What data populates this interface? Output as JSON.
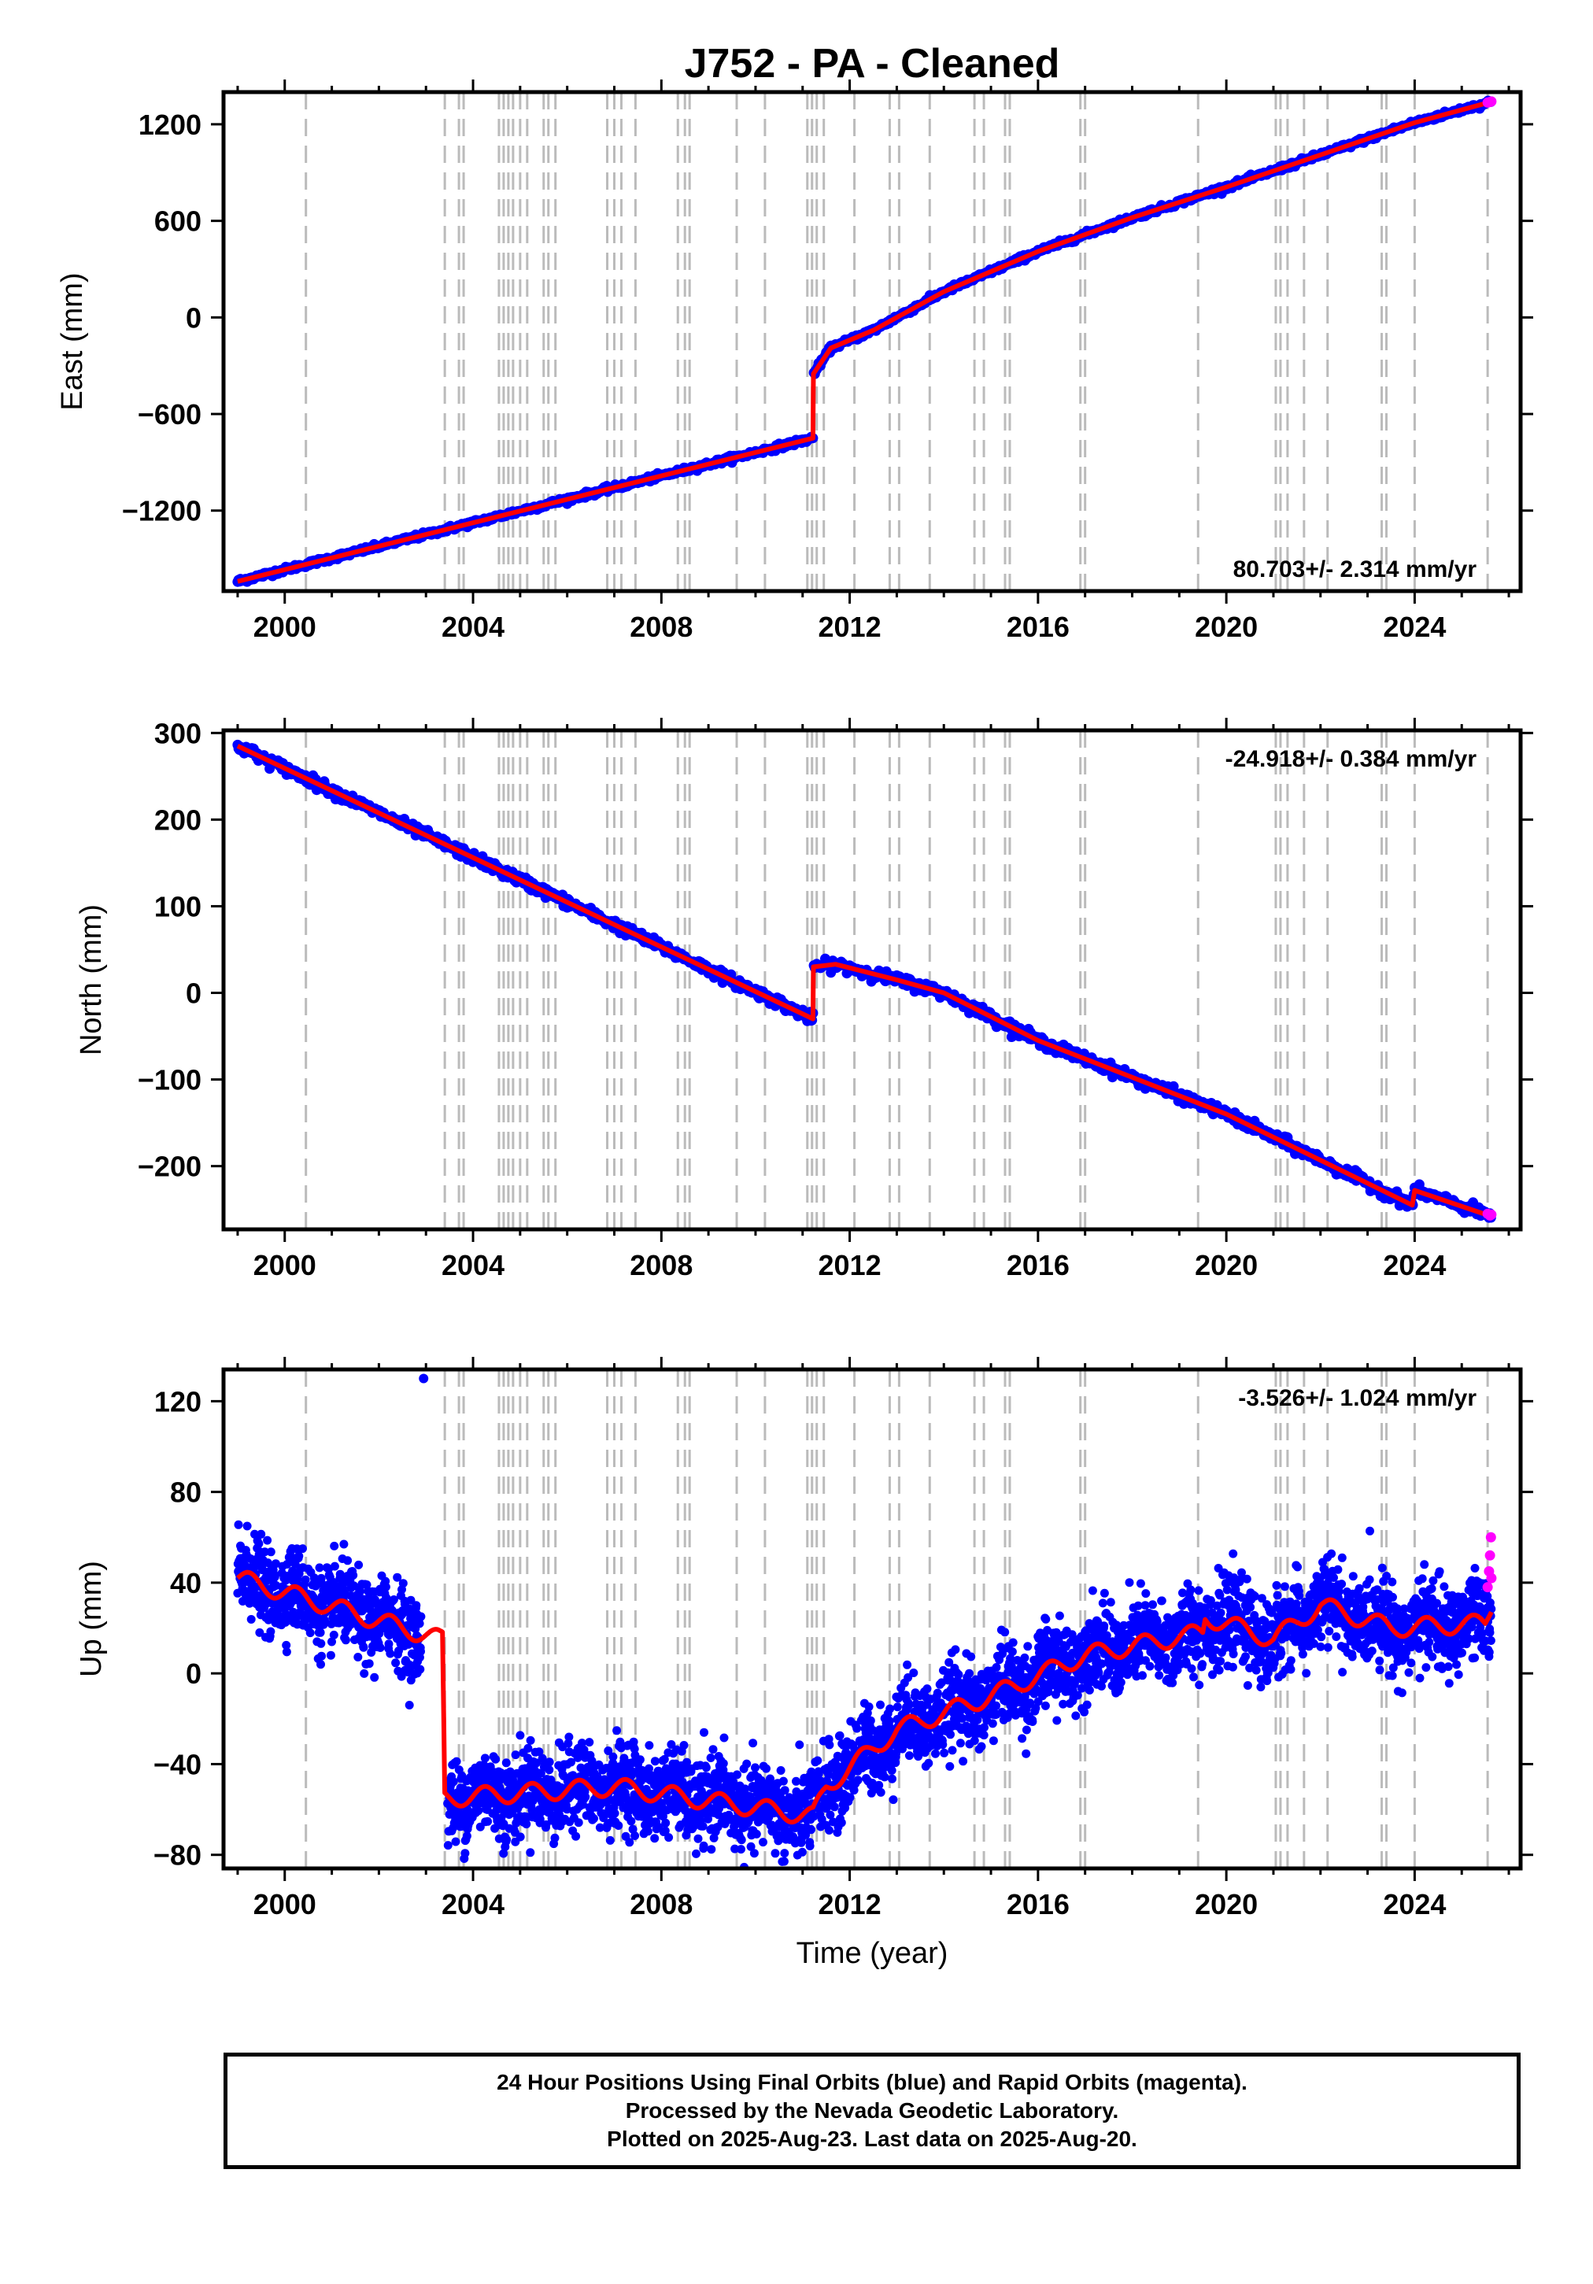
{
  "title": "J752  - PA - Cleaned",
  "footer": {
    "line1": "24 Hour Positions Using Final Orbits (blue) and Rapid Orbits (magenta).",
    "line2": "Processed by the Nevada Geodetic Laboratory.",
    "line3": "Plotted on 2025-Aug-23. Last data on 2025-Aug-20."
  },
  "colors": {
    "final": "#0000ff",
    "rapid": "#ff00ff",
    "model": "#ff0000",
    "events": "#bbbbbb"
  },
  "chart_data": [
    {
      "type": "scatter",
      "ylabel": "East (mm)",
      "xlabel": "",
      "xlim": [
        1998.7,
        2026.25
      ],
      "ylim": [
        -1700,
        1400
      ],
      "xticks": [
        2000,
        2004,
        2008,
        2012,
        2016,
        2020,
        2024
      ],
      "yticks": [
        1200,
        600,
        0,
        -600,
        -1200
      ],
      "rate_label": "80.703+/- 2.314 mm/yr",
      "rate_position": "bottom-right",
      "model": [
        [
          1999.0,
          -1640
        ],
        [
          2011.22,
          -750
        ],
        [
          2011.23,
          -350
        ],
        [
          2011.6,
          -190
        ],
        [
          2012.5,
          -80
        ],
        [
          2014,
          160
        ],
        [
          2016,
          410
        ],
        [
          2018,
          620
        ],
        [
          2020,
          810
        ],
        [
          2022,
          1010
        ],
        [
          2023.9,
          1200
        ],
        [
          2024.0,
          1210
        ],
        [
          2025.63,
          1340
        ]
      ],
      "noise": 8,
      "rapid": [
        [
          2025.55,
          1335
        ],
        [
          2025.6,
          1338
        ],
        [
          2025.63,
          1342
        ]
      ]
    },
    {
      "type": "scatter",
      "ylabel": "North (mm)",
      "xlabel": "",
      "xlim": [
        1998.7,
        2026.25
      ],
      "ylim": [
        -273,
        303
      ],
      "xticks": [
        2000,
        2004,
        2008,
        2012,
        2016,
        2020,
        2024
      ],
      "yticks": [
        300,
        200,
        100,
        0,
        -100,
        -200
      ],
      "rate_label": "-24.918+/- 0.384 mm/yr",
      "rate_position": "top-right",
      "model": [
        [
          1999.0,
          285
        ],
        [
          2011.22,
          -30
        ],
        [
          2011.23,
          30
        ],
        [
          2011.7,
          33
        ],
        [
          2013.0,
          15
        ],
        [
          2014.0,
          0
        ],
        [
          2016.0,
          -55
        ],
        [
          2020.0,
          -140
        ],
        [
          2023.95,
          -245
        ],
        [
          2024.0,
          -228
        ],
        [
          2025.63,
          -258
        ]
      ],
      "noise": 3,
      "rapid": [
        [
          2025.55,
          -255
        ],
        [
          2025.6,
          -257
        ],
        [
          2025.63,
          -256
        ]
      ]
    },
    {
      "type": "scatter",
      "ylabel": "Up (mm)",
      "xlabel": "Time (year)",
      "xlim": [
        1998.7,
        2026.25
      ],
      "ylim": [
        -86,
        134
      ],
      "xticks": [
        2000,
        2004,
        2008,
        2012,
        2016,
        2020,
        2024
      ],
      "yticks": [
        120,
        80,
        40,
        0,
        -40,
        -80
      ],
      "rate_label": "-3.526+/- 1.024 mm/yr",
      "rate_position": "top-right",
      "model": [
        [
          1999.0,
          42
        ],
        [
          2003.3,
          15
        ],
        [
          2003.35,
          15
        ],
        [
          2003.4,
          -55
        ],
        [
          2007.0,
          -50
        ],
        [
          2011.22,
          -63
        ],
        [
          2011.5,
          -50
        ],
        [
          2013.0,
          -25
        ],
        [
          2015.0,
          -10
        ],
        [
          2017.0,
          8
        ],
        [
          2019.5,
          18
        ],
        [
          2019.55,
          25
        ],
        [
          2021.0,
          15
        ],
        [
          2022.0,
          30
        ],
        [
          2023.5,
          20
        ],
        [
          2025.5,
          22
        ],
        [
          2025.63,
          30
        ]
      ],
      "noise": 9,
      "outliers": [
        [
          2002.95,
          130
        ]
      ],
      "rapid": [
        [
          2025.55,
          38
        ],
        [
          2025.58,
          45
        ],
        [
          2025.6,
          52
        ],
        [
          2025.62,
          60
        ],
        [
          2025.63,
          42
        ]
      ]
    }
  ],
  "events": [
    2000.45,
    2003.4,
    2003.7,
    2003.8,
    2004.55,
    2004.65,
    2004.75,
    2004.85,
    2005.0,
    2005.15,
    2005.5,
    2005.6,
    2005.75,
    2006.85,
    2007.0,
    2007.15,
    2007.45,
    2008.35,
    2008.5,
    2008.6,
    2009.6,
    2010.2,
    2011.1,
    2011.2,
    2011.3,
    2011.45,
    2012.1,
    2012.85,
    2013.05,
    2013.7,
    2014.65,
    2014.85,
    2015.3,
    2015.4,
    2016.9,
    2017.0,
    2019.4,
    2021.05,
    2021.15,
    2021.3,
    2021.65,
    2022.15,
    2023.3,
    2023.4,
    2024.0,
    2025.55
  ]
}
